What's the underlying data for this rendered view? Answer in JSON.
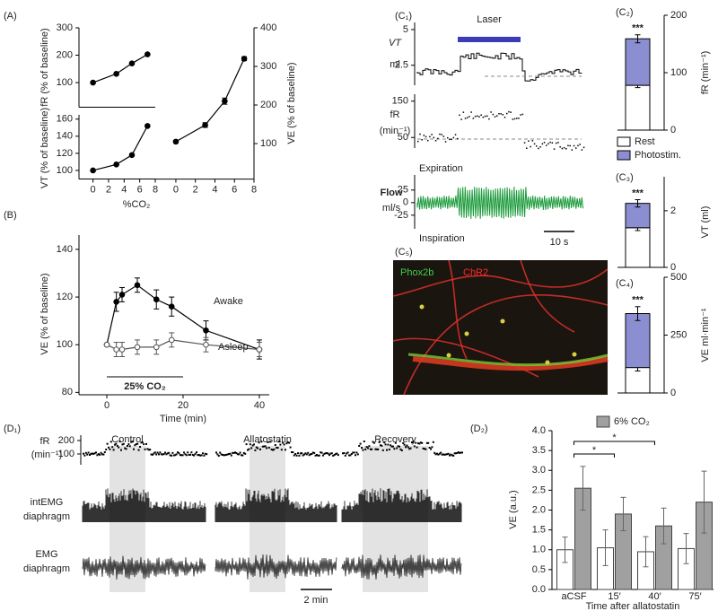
{
  "chart_data": [
    {
      "type": "line",
      "panel": "(A)",
      "ylabel": "fR (% of baseline)",
      "x": [
        0,
        3,
        5,
        7
      ],
      "values": [
        100,
        132,
        170,
        203
      ],
      "xlim": [
        -1.8,
        8
      ],
      "ylim": [
        10,
        300
      ],
      "yticks": [
        100,
        200,
        300
      ],
      "color": "#000000"
    },
    {
      "type": "line",
      "ylabel": "VT (% of baseline)",
      "xlabel": "%CO₂",
      "x": [
        0,
        3,
        5,
        7
      ],
      "values": [
        100,
        107,
        118,
        152
      ],
      "xlim": [
        -1.8,
        8
      ],
      "ylim": [
        90,
        165
      ],
      "yticks": [
        100,
        120,
        140,
        160
      ],
      "xticks": [
        0,
        2,
        4,
        6,
        8
      ],
      "color": "#000000"
    },
    {
      "type": "line",
      "ylabel": "VE (% of baseline)",
      "x": [
        0,
        3,
        5,
        7
      ],
      "values": [
        105,
        148,
        210,
        320
      ],
      "errors": [
        3,
        6,
        8,
        5
      ],
      "xlim": [
        -2.2,
        8
      ],
      "ylim": [
        8,
        400
      ],
      "yticks": [
        100,
        200,
        300,
        400
      ],
      "xticks": [
        0,
        2,
        4,
        6,
        8
      ],
      "yaxis": "right",
      "color": "#000000"
    },
    {
      "type": "line",
      "panel": "(B)",
      "ylabel": "VE (% of baseline)",
      "xlabel": "Time (min)",
      "annotation": "25% CO₂",
      "x": [
        0,
        2.5,
        4,
        8,
        13,
        17,
        26,
        40
      ],
      "series": [
        {
          "name": "Awake",
          "color": "#000000",
          "values": [
            100,
            118,
            121,
            125,
            119,
            116,
            106,
            98
          ],
          "errors": [
            0,
            4,
            3,
            3,
            4,
            4,
            4,
            4
          ]
        },
        {
          "name": "Asleep",
          "color": "#555555",
          "values": [
            100,
            98,
            98,
            99,
            99,
            102,
            100,
            98
          ],
          "errors": [
            0,
            3,
            3,
            3,
            3,
            3,
            3,
            3
          ]
        }
      ],
      "xlim": [
        -7.3,
        42.6
      ],
      "ylim": [
        79,
        146
      ],
      "xticks": [
        0,
        20,
        40
      ],
      "yticks": [
        80,
        100,
        120,
        140
      ]
    },
    {
      "type": "trace",
      "panel": "(C₁)",
      "annotation": "Laser",
      "color": "#1a9a3a",
      "rows": [
        {
          "label": "VT",
          "unit": "ml",
          "ylim": [
            1.1,
            5.5
          ],
          "yticks": [
            2.5,
            5
          ]
        },
        {
          "label": "fR",
          "unit": "(min⁻¹)",
          "ylim": [
            21,
            169
          ],
          "yticks": [
            50,
            150
          ]
        },
        {
          "label": "Flow",
          "unit": "ml/s",
          "ylim": [
            -52,
            55
          ],
          "yticks": [
            -25,
            0,
            25
          ],
          "top_label": "Expiration",
          "bottom_label": "Inspiration"
        }
      ],
      "scale_bar": "10 s"
    },
    {
      "type": "stacked_bar",
      "panel": "(C₂)",
      "ylabel": "fR (min⁻¹)",
      "annotation": "***",
      "series": [
        {
          "name": "Rest",
          "color": "#ffffff",
          "values": [
            78
          ],
          "errors": [
            4
          ]
        },
        {
          "name": "Photostim.",
          "color": "#8c8ed2",
          "values": [
            81
          ],
          "errors": [
            7
          ]
        }
      ],
      "ylim": [
        0,
        200
      ],
      "yticks": [
        0,
        100,
        200
      ]
    },
    {
      "type": "stacked_bar",
      "panel": "(C₃)",
      "ylabel": "VT (ml)",
      "annotation": "***",
      "series": [
        {
          "color": "#ffffff",
          "values": [
            1.4
          ],
          "errors": [
            0.1
          ]
        },
        {
          "color": "#8c8ed2",
          "values": [
            0.86
          ],
          "errors": [
            0.13
          ]
        }
      ],
      "ylim": [
        0,
        3.2
      ],
      "yticks": [
        0,
        2
      ]
    },
    {
      "type": "stacked_bar",
      "panel": "(C₄)",
      "ylabel": "VE ml·min⁻¹",
      "annotation": "***",
      "series": [
        {
          "color": "#ffffff",
          "values": [
            110
          ],
          "errors": [
            15
          ]
        },
        {
          "color": "#8c8ed2",
          "values": [
            233
          ],
          "errors": [
            30
          ]
        }
      ],
      "ylim": [
        0,
        500
      ],
      "yticks": [
        0,
        250,
        500
      ]
    },
    {
      "type": "image",
      "panel": "(C₅)",
      "labels": [
        {
          "text": "Phox2b",
          "color": "#3fd04a"
        },
        {
          "text": "ChR2",
          "color": "#ff2a2a"
        }
      ]
    },
    {
      "type": "trace",
      "panel": "(D₁)",
      "conditions": [
        "Control",
        "Allatostatin",
        "Recovery"
      ],
      "rows": [
        {
          "label": [
            "fR",
            "(min⁻¹)"
          ],
          "ylim": [
            20,
            240
          ],
          "yticks": [
            100,
            200
          ]
        },
        {
          "label": [
            "intEMG",
            "diaphragm"
          ]
        },
        {
          "label": [
            "EMG",
            "diaphragm"
          ]
        }
      ],
      "scale_bar": "2 min",
      "shade": "#e3e3e3"
    },
    {
      "type": "bar",
      "panel": "(D₂)",
      "ylabel": "VE (a.u.)",
      "xlabel": "Time after allatostatin",
      "categories": [
        "aCSF",
        "15′",
        "40′",
        "75′"
      ],
      "series": [
        {
          "color": "#ffffff",
          "values": [
            1.0,
            1.05,
            0.95,
            1.03
          ],
          "errors": [
            0.32,
            0.45,
            0.38,
            0.38
          ]
        },
        {
          "name": "6% CO₂",
          "color": "#a0a0a0",
          "values": [
            2.55,
            1.9,
            1.6,
            2.2
          ],
          "errors": [
            0.55,
            0.42,
            0.45,
            0.78
          ]
        }
      ],
      "ylim": [
        0,
        4
      ],
      "yticks": [
        {
          "value": 0,
          "label": "0.0"
        },
        0.5,
        {
          "value": 1,
          "label": "1.0"
        },
        1.5,
        {
          "value": 2,
          "label": "2.0"
        },
        2.5,
        {
          "value": 3,
          "label": "3.0"
        },
        3.5,
        {
          "value": 4,
          "label": "4.0"
        }
      ],
      "annotations": [
        "*",
        "*"
      ]
    }
  ]
}
